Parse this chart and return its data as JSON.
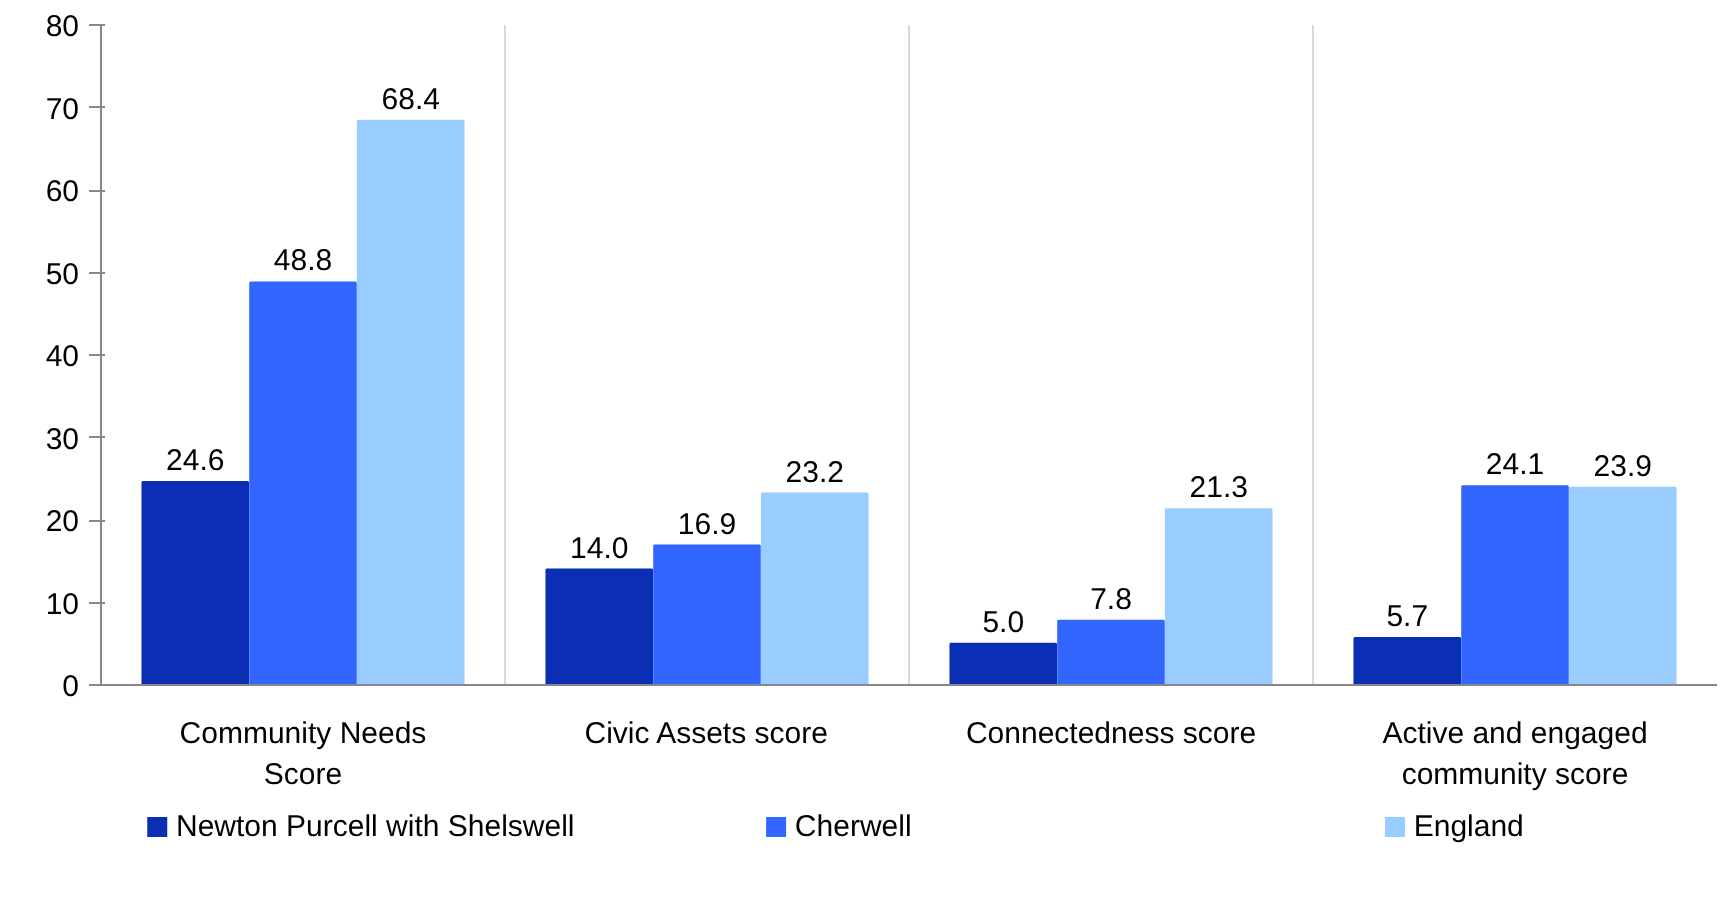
{
  "chart_data": {
    "type": "bar",
    "categories": [
      "Community Needs\nScore",
      "Civic Assets score",
      "Connectedness score",
      "Active and engaged\ncommunity score"
    ],
    "series": [
      {
        "name": "Newton Purcell with Shelswell",
        "color": "#0a2fb4",
        "values": [
          24.6,
          14.0,
          5.0,
          5.7
        ],
        "value_labels": [
          "24.6",
          "14.0",
          "5.0",
          "5.7"
        ]
      },
      {
        "name": "Cherwell",
        "color": "#3366ff",
        "values": [
          48.8,
          16.9,
          7.8,
          24.1
        ],
        "value_labels": [
          "48.8",
          "16.9",
          "7.8",
          "24.1"
        ]
      },
      {
        "name": "England",
        "color": "#99ccff",
        "values": [
          68.4,
          23.2,
          21.3,
          23.9
        ],
        "value_labels": [
          "68.4",
          "23.2",
          "21.3",
          "23.9"
        ]
      }
    ],
    "ylim": [
      0,
      80
    ],
    "yticks": [
      0,
      10,
      20,
      30,
      40,
      50,
      60,
      70,
      80
    ],
    "grid": "x",
    "legend": "bottom"
  }
}
